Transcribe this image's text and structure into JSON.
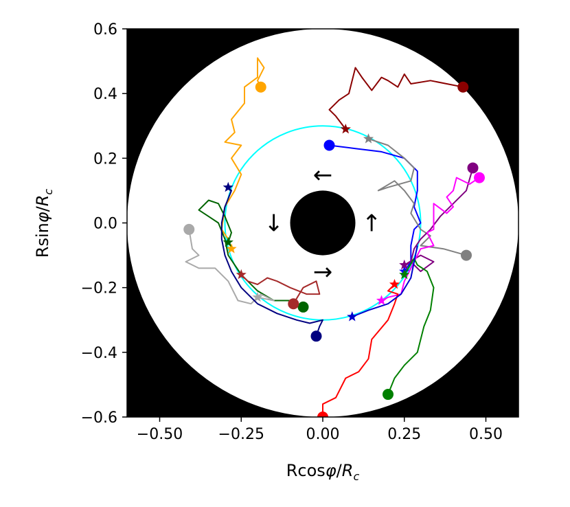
{
  "chart_data": {
    "type": "scatter",
    "title": "",
    "xlabel": "Rcosφ/Rc",
    "ylabel": "Rsinφ/Rc",
    "xlim": [
      -0.6,
      0.6
    ],
    "ylim": [
      -0.6,
      0.6
    ],
    "x_ticks": [
      -0.5,
      -0.25,
      0.0,
      0.25,
      0.5
    ],
    "x_tick_labels": [
      "−0.50",
      "−0.25",
      "0.00",
      "0.25",
      "0.50"
    ],
    "y_ticks": [
      0.6,
      0.4,
      0.2,
      0.0,
      -0.2,
      -0.4,
      -0.6
    ],
    "y_tick_labels": [
      "0.6",
      "0.4",
      "0.2",
      "0.0",
      "−0.2",
      "−0.4",
      "−0.6"
    ],
    "grid": false,
    "background_color": "#000000",
    "disk": {
      "radius": 0.6,
      "color": "#ffffff"
    },
    "inner_obstacle": {
      "radius": 0.1,
      "color": "#000000"
    },
    "reference_circle": {
      "radius": 0.3,
      "color": "#00ffff"
    },
    "rotation_arrows": [
      {
        "glyph": "←",
        "x": 0.0,
        "y": 0.15
      },
      {
        "glyph": "↓",
        "x": -0.15,
        "y": 0.0
      },
      {
        "glyph": "→",
        "x": 0.0,
        "y": -0.15
      },
      {
        "glyph": "↑",
        "x": 0.15,
        "y": 0.0
      }
    ],
    "series": [
      {
        "name": "darkred",
        "color": "#8b0000",
        "points": [
          [
            0.43,
            0.42
          ],
          [
            0.38,
            0.43
          ],
          [
            0.33,
            0.44
          ],
          [
            0.27,
            0.43
          ],
          [
            0.25,
            0.46
          ],
          [
            0.23,
            0.42
          ],
          [
            0.2,
            0.44
          ],
          [
            0.18,
            0.45
          ],
          [
            0.15,
            0.41
          ],
          [
            0.12,
            0.45
          ],
          [
            0.1,
            0.48
          ],
          [
            0.08,
            0.4
          ],
          [
            0.05,
            0.38
          ],
          [
            0.02,
            0.35
          ],
          [
            0.04,
            0.33
          ],
          [
            0.07,
            0.29
          ]
        ],
        "start": [
          0.43,
          0.42
        ],
        "star": [
          0.07,
          0.29
        ]
      },
      {
        "name": "orange",
        "color": "#ffa500",
        "points": [
          [
            -0.19,
            0.42
          ],
          [
            -0.2,
            0.44
          ],
          [
            -0.18,
            0.48
          ],
          [
            -0.2,
            0.51
          ],
          [
            -0.2,
            0.45
          ],
          [
            -0.24,
            0.42
          ],
          [
            -0.24,
            0.37
          ],
          [
            -0.28,
            0.32
          ],
          [
            -0.27,
            0.28
          ],
          [
            -0.3,
            0.25
          ],
          [
            -0.25,
            0.24
          ],
          [
            -0.28,
            0.2
          ],
          [
            -0.25,
            0.15
          ],
          [
            -0.27,
            0.1
          ],
          [
            -0.3,
            0.05
          ],
          [
            -0.31,
            -0.02
          ],
          [
            -0.29,
            -0.05
          ],
          [
            -0.28,
            -0.08
          ]
        ],
        "start": [
          -0.19,
          0.42
        ],
        "star": [
          -0.28,
          -0.08
        ]
      },
      {
        "name": "blue",
        "color": "#0000ff",
        "points": [
          [
            0.02,
            0.24
          ],
          [
            0.1,
            0.23
          ],
          [
            0.18,
            0.22
          ],
          [
            0.25,
            0.2
          ],
          [
            0.29,
            0.16
          ],
          [
            0.29,
            0.1
          ],
          [
            0.28,
            0.05
          ],
          [
            0.3,
            0.0
          ],
          [
            0.28,
            -0.02
          ],
          [
            0.27,
            -0.07
          ],
          [
            0.27,
            -0.12
          ],
          [
            0.25,
            -0.15
          ]
        ],
        "start": [
          0.02,
          0.24
        ],
        "star": [
          0.25,
          -0.15
        ]
      },
      {
        "name": "grey",
        "color": "#808080",
        "points": [
          [
            0.14,
            0.26
          ],
          [
            0.2,
            0.24
          ],
          [
            0.25,
            0.2
          ],
          [
            0.28,
            0.17
          ],
          [
            0.27,
            0.13
          ],
          [
            0.2,
            0.11
          ],
          [
            0.17,
            0.1
          ],
          [
            0.22,
            0.13
          ],
          [
            0.25,
            0.1
          ],
          [
            0.28,
            0.06
          ],
          [
            0.27,
            0.03
          ],
          [
            0.3,
            -0.02
          ],
          [
            0.33,
            -0.04
          ],
          [
            0.3,
            -0.07
          ],
          [
            0.37,
            -0.08
          ],
          [
            0.44,
            -0.1
          ]
        ],
        "start": [
          0.44,
          -0.1
        ],
        "star": [
          0.14,
          0.26
        ]
      },
      {
        "name": "purple",
        "color": "#800080",
        "points": [
          [
            0.46,
            0.17
          ],
          [
            0.44,
            0.1
          ],
          [
            0.4,
            0.06
          ],
          [
            0.36,
            0.02
          ],
          [
            0.33,
            -0.02
          ],
          [
            0.3,
            -0.05
          ],
          [
            0.28,
            -0.08
          ],
          [
            0.27,
            -0.12
          ],
          [
            0.3,
            -0.15
          ],
          [
            0.34,
            -0.12
          ],
          [
            0.3,
            -0.1
          ],
          [
            0.25,
            -0.13
          ]
        ],
        "start": [
          0.46,
          0.17
        ],
        "star": [
          0.25,
          -0.13
        ]
      },
      {
        "name": "magenta",
        "color": "#ff00ff",
        "points": [
          [
            0.48,
            0.14
          ],
          [
            0.45,
            0.12
          ],
          [
            0.41,
            0.14
          ],
          [
            0.4,
            0.1
          ],
          [
            0.38,
            0.08
          ],
          [
            0.4,
            0.05
          ],
          [
            0.38,
            0.03
          ],
          [
            0.34,
            0.06
          ],
          [
            0.34,
            -0.02
          ],
          [
            0.32,
            -0.03
          ],
          [
            0.34,
            -0.07
          ],
          [
            0.3,
            -0.08
          ],
          [
            0.28,
            -0.12
          ],
          [
            0.25,
            -0.18
          ],
          [
            0.24,
            -0.22
          ],
          [
            0.2,
            -0.23
          ],
          [
            0.18,
            -0.24
          ]
        ],
        "start": [
          0.48,
          0.14
        ],
        "star": [
          0.18,
          -0.24
        ]
      },
      {
        "name": "red",
        "color": "#ff0000",
        "points": [
          [
            0.0,
            -0.6
          ],
          [
            0.0,
            -0.56
          ],
          [
            0.04,
            -0.54
          ],
          [
            0.07,
            -0.48
          ],
          [
            0.11,
            -0.46
          ],
          [
            0.14,
            -0.42
          ],
          [
            0.15,
            -0.36
          ],
          [
            0.2,
            -0.3
          ],
          [
            0.22,
            -0.25
          ],
          [
            0.23,
            -0.22
          ],
          [
            0.2,
            -0.21
          ],
          [
            0.22,
            -0.19
          ]
        ],
        "start": [
          0.0,
          -0.6
        ],
        "star": [
          0.22,
          -0.19
        ]
      },
      {
        "name": "green",
        "color": "#008000",
        "points": [
          [
            0.2,
            -0.53
          ],
          [
            0.22,
            -0.48
          ],
          [
            0.25,
            -0.44
          ],
          [
            0.29,
            -0.4
          ],
          [
            0.31,
            -0.32
          ],
          [
            0.33,
            -0.27
          ],
          [
            0.34,
            -0.2
          ],
          [
            0.32,
            -0.15
          ],
          [
            0.29,
            -0.13
          ],
          [
            0.28,
            -0.11
          ],
          [
            0.25,
            -0.16
          ]
        ],
        "start": [
          0.2,
          -0.53
        ],
        "star": [
          0.25,
          -0.16
        ]
      },
      {
        "name": "darkgreen",
        "color": "#006400",
        "points": [
          [
            -0.06,
            -0.26
          ],
          [
            -0.1,
            -0.24
          ],
          [
            -0.15,
            -0.24
          ],
          [
            -0.2,
            -0.21
          ],
          [
            -0.25,
            -0.16
          ],
          [
            -0.29,
            -0.1
          ],
          [
            -0.3,
            -0.05
          ],
          [
            -0.32,
            0.0
          ],
          [
            -0.35,
            0.02
          ],
          [
            -0.38,
            0.04
          ],
          [
            -0.35,
            0.07
          ],
          [
            -0.32,
            0.06
          ],
          [
            -0.3,
            0.02
          ],
          [
            -0.28,
            -0.03
          ],
          [
            -0.29,
            -0.06
          ]
        ],
        "start": [
          -0.06,
          -0.26
        ],
        "star": [
          -0.29,
          -0.06
        ]
      },
      {
        "name": "brown",
        "color": "#a52a2a",
        "points": [
          [
            -0.09,
            -0.25
          ],
          [
            -0.06,
            -0.2
          ],
          [
            -0.02,
            -0.18
          ],
          [
            -0.01,
            -0.22
          ],
          [
            -0.05,
            -0.22
          ],
          [
            -0.1,
            -0.2
          ],
          [
            -0.14,
            -0.18
          ],
          [
            -0.17,
            -0.17
          ],
          [
            -0.2,
            -0.19
          ],
          [
            -0.23,
            -0.18
          ],
          [
            -0.25,
            -0.16
          ]
        ],
        "start": [
          -0.09,
          -0.25
        ],
        "star": [
          -0.25,
          -0.16
        ]
      },
      {
        "name": "silver",
        "color": "#a9a9a9",
        "points": [
          [
            -0.41,
            -0.02
          ],
          [
            -0.4,
            -0.08
          ],
          [
            -0.38,
            -0.1
          ],
          [
            -0.42,
            -0.12
          ],
          [
            -0.38,
            -0.14
          ],
          [
            -0.33,
            -0.14
          ],
          [
            -0.29,
            -0.18
          ],
          [
            -0.26,
            -0.24
          ],
          [
            -0.22,
            -0.25
          ],
          [
            -0.19,
            -0.22
          ],
          [
            -0.15,
            -0.24
          ],
          [
            -0.2,
            -0.23
          ]
        ],
        "start": [
          -0.41,
          -0.02
        ],
        "star": [
          -0.2,
          -0.23
        ]
      },
      {
        "name": "navy",
        "color": "#000080",
        "points": [
          [
            -0.02,
            -0.35
          ],
          [
            -0.01,
            -0.32
          ],
          [
            0.0,
            -0.3
          ],
          [
            -0.04,
            -0.31
          ],
          [
            -0.08,
            -0.3
          ],
          [
            -0.14,
            -0.28
          ],
          [
            -0.2,
            -0.25
          ],
          [
            -0.25,
            -0.2
          ],
          [
            -0.28,
            -0.15
          ],
          [
            -0.3,
            -0.1
          ],
          [
            -0.31,
            -0.05
          ],
          [
            -0.31,
            0.0
          ],
          [
            -0.3,
            0.05
          ],
          [
            -0.28,
            0.1
          ],
          [
            -0.29,
            0.11
          ]
        ],
        "start": [
          -0.02,
          -0.35
        ],
        "star": [
          -0.29,
          0.11
        ]
      },
      {
        "name": "blue-lower",
        "color": "#0000cd",
        "points": [
          [
            0.09,
            -0.29
          ],
          [
            0.14,
            -0.27
          ],
          [
            0.2,
            -0.25
          ],
          [
            0.24,
            -0.22
          ],
          [
            0.27,
            -0.17
          ],
          [
            0.28,
            -0.12
          ],
          [
            0.29,
            -0.07
          ]
        ],
        "start": null,
        "star": [
          0.09,
          -0.29
        ]
      }
    ]
  }
}
